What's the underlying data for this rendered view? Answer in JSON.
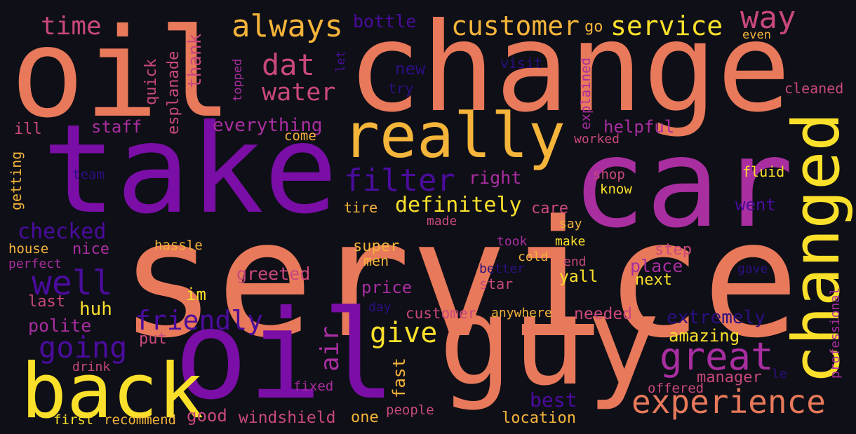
{
  "palette": {
    "background": "#0e0f17",
    "orange": "#e8795a",
    "purple": "#7a0ea6",
    "magenta": "#a92ea0",
    "pink": "#c9487d",
    "yellow": "#fbe02b",
    "amber": "#f5b43a",
    "indigo": "#4b0c9d",
    "deep": "#2d0f80"
  },
  "words": [
    {
      "text": "service"
    },
    {
      "text": "change"
    },
    {
      "text": "oil"
    },
    {
      "text": "oil"
    },
    {
      "text": "take"
    },
    {
      "text": "car"
    },
    {
      "text": "guy"
    },
    {
      "text": "changed"
    },
    {
      "text": "back"
    },
    {
      "text": "really"
    },
    {
      "text": "experience"
    },
    {
      "text": "great"
    },
    {
      "text": "always"
    },
    {
      "text": "customer"
    },
    {
      "text": "service"
    },
    {
      "text": "way"
    },
    {
      "text": "time"
    },
    {
      "text": "dat"
    },
    {
      "text": "water"
    },
    {
      "text": "filter"
    },
    {
      "text": "well"
    },
    {
      "text": "going"
    },
    {
      "text": "friendly"
    },
    {
      "text": "give"
    },
    {
      "text": "air"
    },
    {
      "text": "definitely"
    },
    {
      "text": "checked"
    },
    {
      "text": "bottle"
    },
    {
      "text": "go"
    },
    {
      "text": "even"
    },
    {
      "text": "new"
    },
    {
      "text": "visit"
    },
    {
      "text": "let"
    },
    {
      "text": "quick"
    },
    {
      "text": "esplanade"
    },
    {
      "text": "thank"
    },
    {
      "text": "topped"
    },
    {
      "text": "try"
    },
    {
      "text": "explained"
    },
    {
      "text": "cleaned"
    },
    {
      "text": "staff"
    },
    {
      "text": "everything"
    },
    {
      "text": "helpful"
    },
    {
      "text": "ill"
    },
    {
      "text": "come"
    },
    {
      "text": "worked"
    },
    {
      "text": "getting"
    },
    {
      "text": "team"
    },
    {
      "text": "right"
    },
    {
      "text": "shop"
    },
    {
      "text": "fluid"
    },
    {
      "text": "know"
    },
    {
      "text": "went"
    },
    {
      "text": "tire"
    },
    {
      "text": "care"
    },
    {
      "text": "made"
    },
    {
      "text": "say"
    },
    {
      "text": "house"
    },
    {
      "text": "nice"
    },
    {
      "text": "hassle"
    },
    {
      "text": "took"
    },
    {
      "text": "make"
    },
    {
      "text": "super"
    },
    {
      "text": "step"
    },
    {
      "text": "perfect"
    },
    {
      "text": "men"
    },
    {
      "text": "cold"
    },
    {
      "text": "end"
    },
    {
      "text": "place"
    },
    {
      "text": "greeted"
    },
    {
      "text": "better"
    },
    {
      "text": "gave"
    },
    {
      "text": "yall"
    },
    {
      "text": "next"
    },
    {
      "text": "star"
    },
    {
      "text": "price"
    },
    {
      "text": "im"
    },
    {
      "text": "last"
    },
    {
      "text": "huh"
    },
    {
      "text": "day"
    },
    {
      "text": "customer"
    },
    {
      "text": "anywhere"
    },
    {
      "text": "needed"
    },
    {
      "text": "extremely"
    },
    {
      "text": "professional"
    },
    {
      "text": "polite"
    },
    {
      "text": "put"
    },
    {
      "text": "amazing"
    },
    {
      "text": "fast"
    },
    {
      "text": "drink"
    },
    {
      "text": "manager"
    },
    {
      "text": "le"
    },
    {
      "text": "fixed"
    },
    {
      "text": "offered"
    },
    {
      "text": "best"
    },
    {
      "text": "people"
    },
    {
      "text": "first"
    },
    {
      "text": "recommend"
    },
    {
      "text": "good"
    },
    {
      "text": "windshield"
    },
    {
      "text": "one"
    },
    {
      "text": "location"
    }
  ]
}
